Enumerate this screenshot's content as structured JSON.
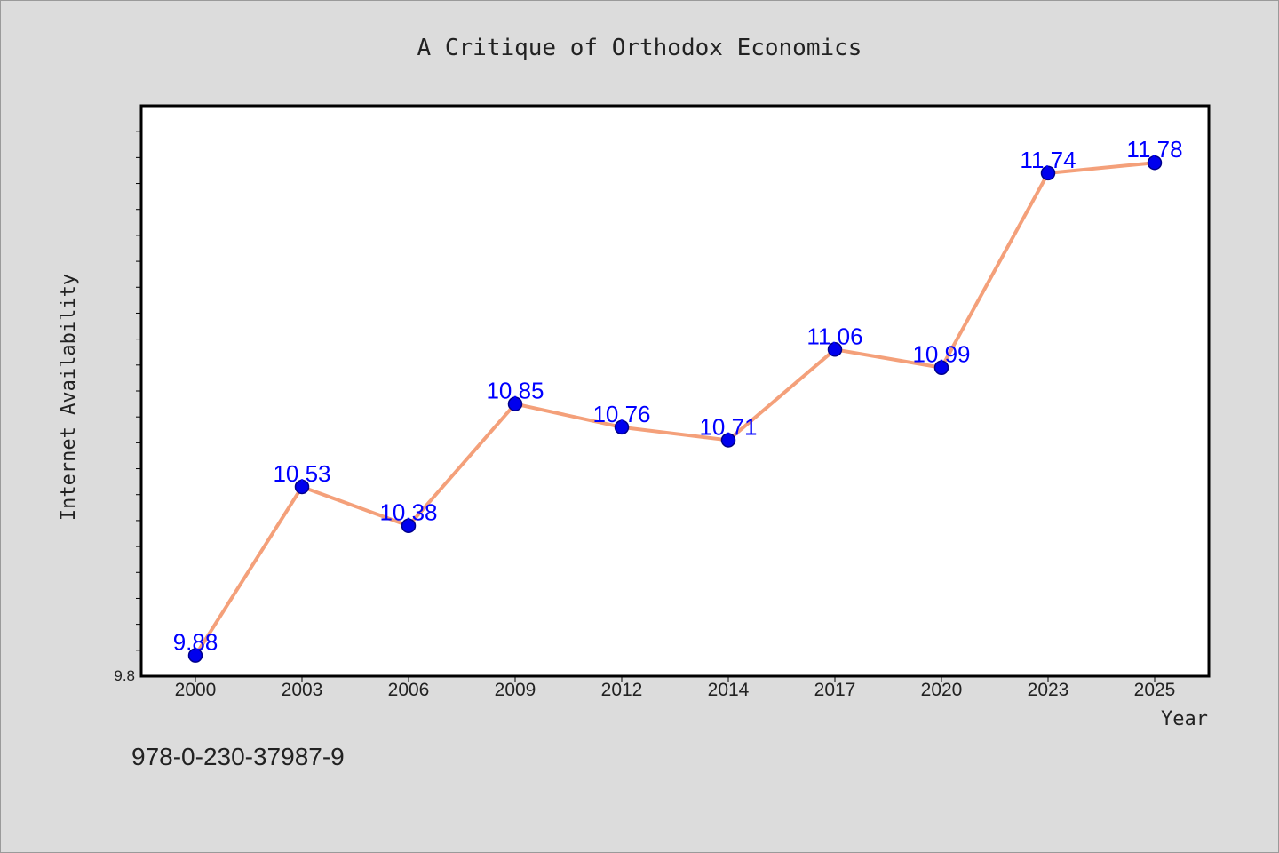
{
  "colors": {
    "background": "#dcdcdc",
    "plot_background": "#ffffff",
    "line": "#f4a07a",
    "marker": "#0000ee",
    "marker_edge": "#00008b",
    "data_label": "#0000ff",
    "text": "#222222"
  },
  "chart_data": {
    "type": "line",
    "title": "A Critique of Orthodox Economics",
    "xlabel": "Year",
    "ylabel": "Internet Availability",
    "categories": [
      "2000",
      "2003",
      "2006",
      "2009",
      "2012",
      "2014",
      "2017",
      "2020",
      "2023",
      "2025"
    ],
    "series": [
      {
        "values": [
          9.88,
          10.53,
          10.38,
          10.85,
          10.76,
          10.71,
          11.06,
          10.99,
          11.74,
          11.78
        ],
        "labels": [
          "9.88",
          "10.53",
          "10.38",
          "10.85",
          "10.76",
          "10.71",
          "11.06",
          "10.99",
          "11.74",
          "11.78"
        ]
      }
    ],
    "ylim": [
      9.8,
      12.0
    ],
    "ytick_labels": [
      "9.8"
    ],
    "grid": false,
    "legend": "none"
  },
  "footer": {
    "isbn": "978-0-230-37987-9"
  }
}
